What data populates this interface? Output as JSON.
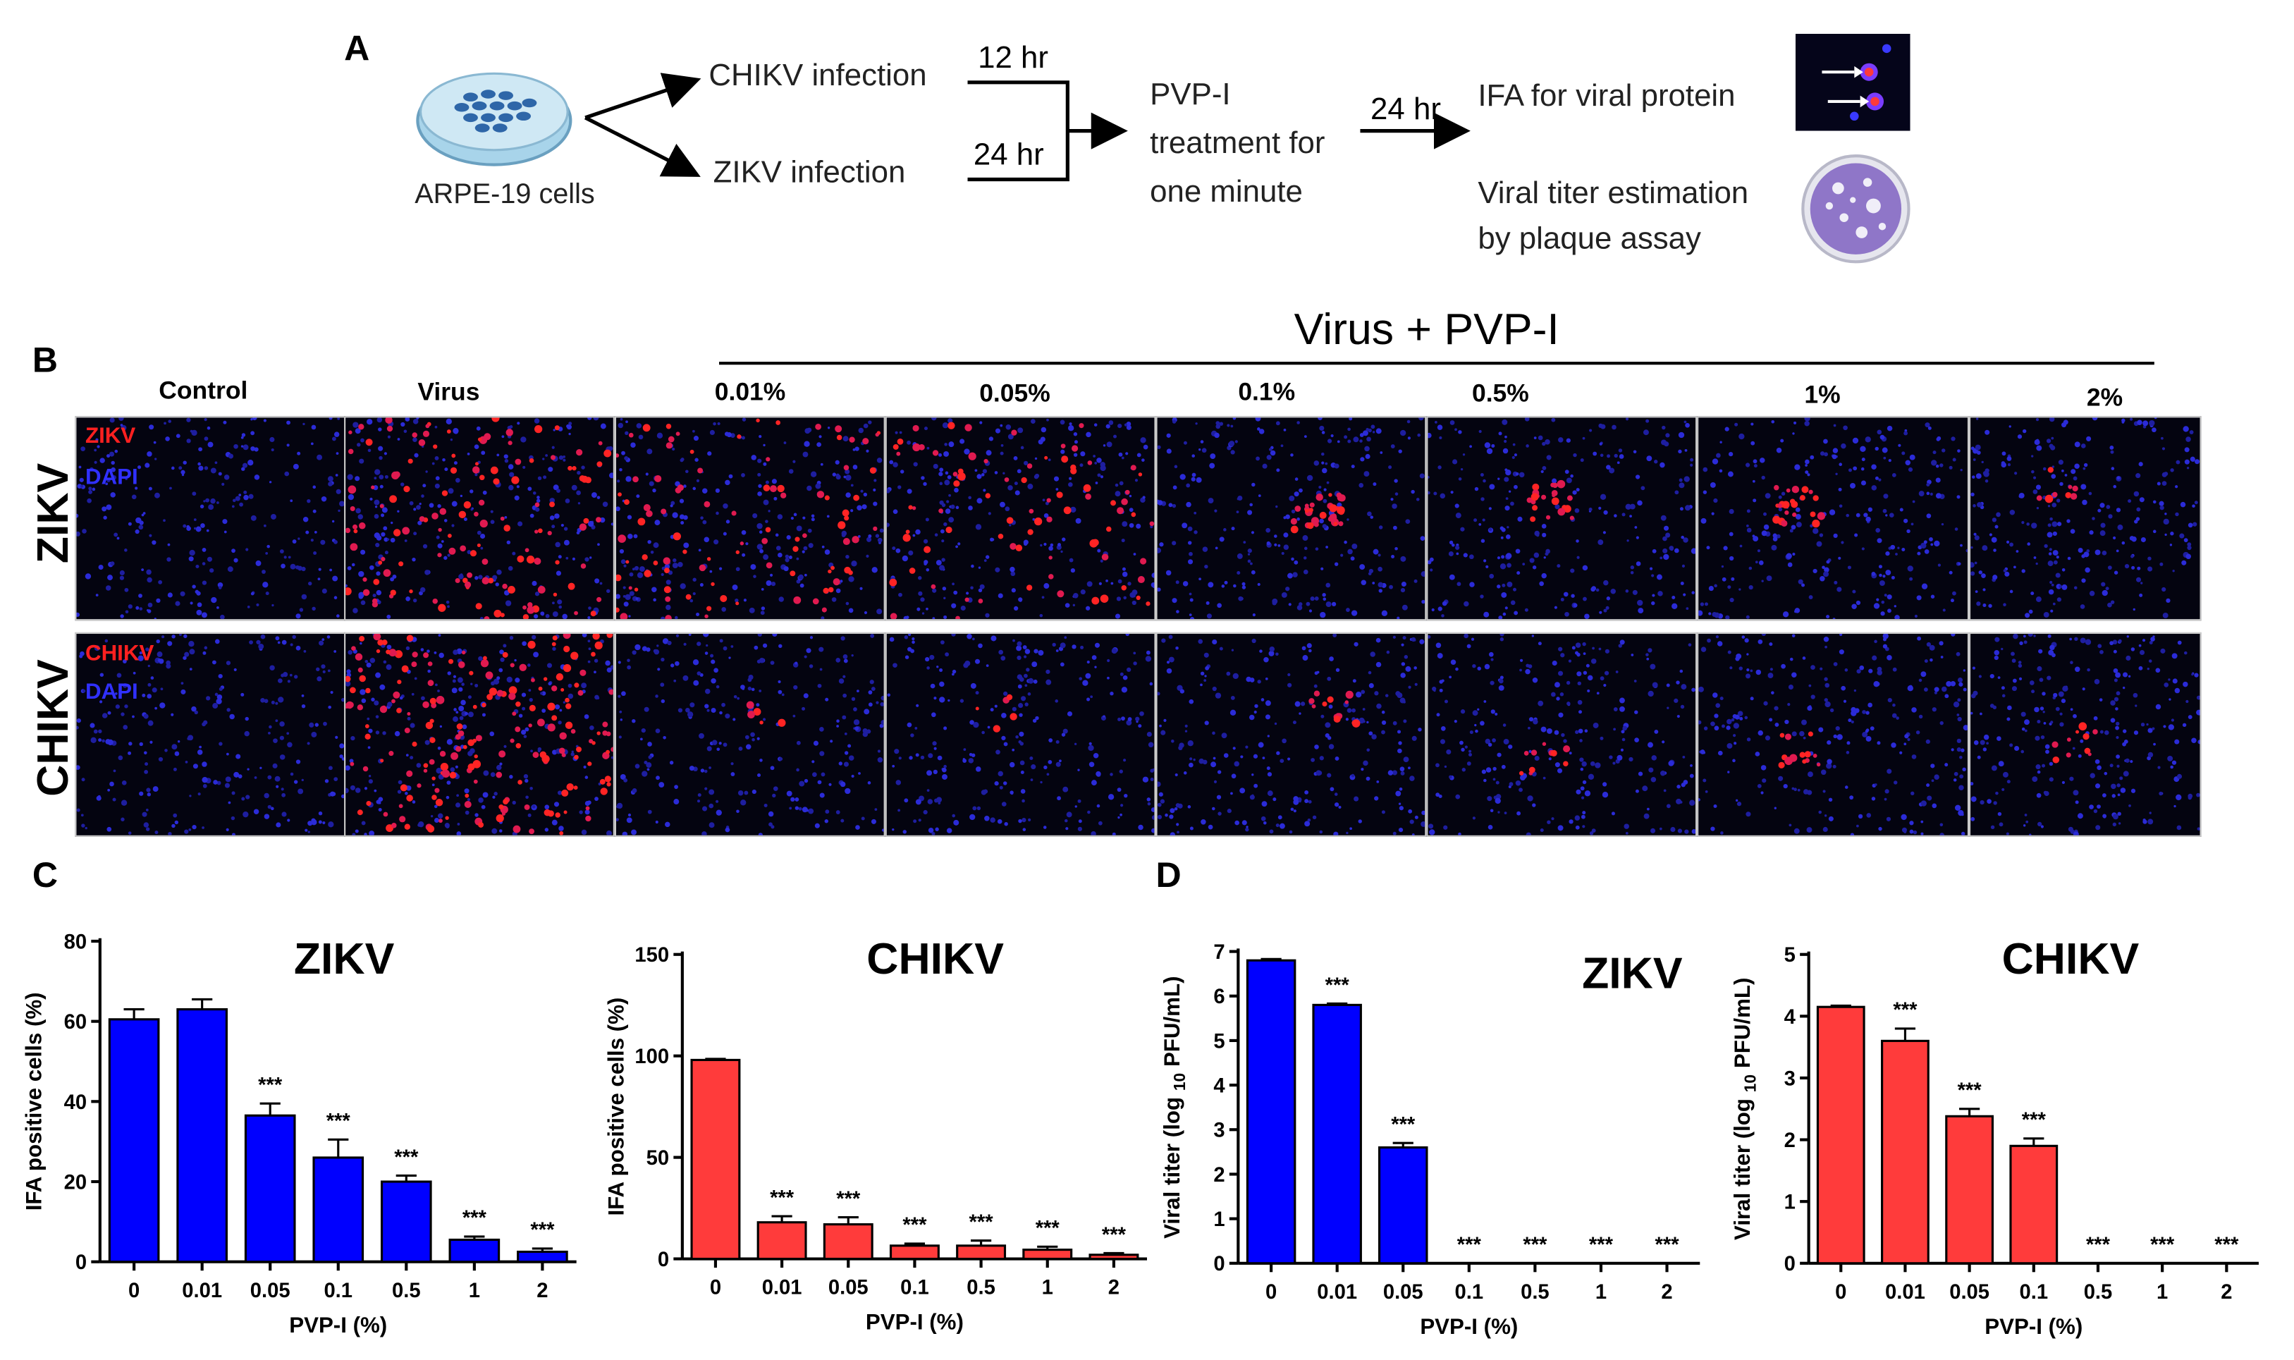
{
  "panel_a": {
    "label": "A",
    "cells_label": "ARPE-19 cells",
    "infection_chikv": "CHIKV infection",
    "infection_zikv": "ZIKV infection",
    "time_chikv": "12 hr",
    "time_zikv": "24 hr",
    "treatment_line1": "PVP-I",
    "treatment_line2": "treatment for",
    "treatment_line3": "one minute",
    "time_after": "24 hr",
    "readout_ifa": "IFA for viral protein",
    "readout_titer_line1": "Viral titer estimation",
    "readout_titer_line2": "by plaque assay"
  },
  "panel_b": {
    "label": "B",
    "group_title": "Virus + PVP-I",
    "columns": [
      "Control",
      "Virus",
      "0.01%",
      "0.05%",
      "0.1%",
      "0.5%",
      "1%",
      "2%"
    ],
    "rows": [
      {
        "label": "ZIKV",
        "stain_virus": "ZIKV",
        "stain_nuclear": "DAPI"
      },
      {
        "label": "CHIKV",
        "stain_virus": "CHIKV",
        "stain_nuclear": "DAPI"
      }
    ],
    "colors": {
      "virus_stain": "#ff1a1a",
      "nuclear_stain": "#2a2aff"
    }
  },
  "panel_c": {
    "label": "C"
  },
  "panel_d": {
    "label": "D"
  },
  "chart_data": [
    {
      "type": "bar",
      "title": "ZIKV",
      "xlabel": "PVP-I (%)",
      "ylabel": "IFA positive cells (%)",
      "categories": [
        "0",
        "0.01",
        "0.05",
        "0.1",
        "0.5",
        "1",
        "2"
      ],
      "values": [
        60.5,
        63,
        36.5,
        26,
        20,
        5.5,
        2.5
      ],
      "errors": [
        2.5,
        2.5,
        3,
        4.5,
        1.5,
        0.8,
        0.8
      ],
      "annotations": [
        "",
        "",
        "***",
        "***",
        "***",
        "***",
        "***"
      ],
      "ylim": [
        0,
        80
      ],
      "yticks": [
        "0",
        "20",
        "40",
        "60",
        "80"
      ],
      "color": "#0000ff"
    },
    {
      "type": "bar",
      "title": "CHIKV",
      "xlabel": "PVP-I (%)",
      "ylabel": "IFA positive cells (%)",
      "categories": [
        "0",
        "0.01",
        "0.05",
        "0.1",
        "0.5",
        "1",
        "2"
      ],
      "values": [
        98,
        18,
        17,
        6.5,
        6.5,
        4.5,
        2
      ],
      "errors": [
        0.5,
        3,
        3.5,
        1,
        2.5,
        1.5,
        0.8
      ],
      "annotations": [
        "",
        "***",
        "***",
        "***",
        "***",
        "***",
        "***"
      ],
      "ylim": [
        0,
        150
      ],
      "yticks": [
        "0",
        "50",
        "100",
        "150"
      ],
      "color": "#ff3b3b"
    },
    {
      "type": "bar",
      "title": "ZIKV",
      "xlabel": "PVP-I (%)",
      "ylabel": "Viral titer (log 10 PFU/mL)",
      "ylabel_parts": [
        "Viral titer (log ",
        "10",
        " PFU/mL)"
      ],
      "categories": [
        "0",
        "0.01",
        "0.05",
        "0.1",
        "0.5",
        "1",
        "2"
      ],
      "values": [
        6.8,
        5.8,
        2.6,
        0,
        0,
        0,
        0
      ],
      "errors": [
        0.03,
        0.03,
        0.1,
        0,
        0,
        0,
        0
      ],
      "annotations": [
        "",
        "***",
        "***",
        "***",
        "***",
        "***",
        "***"
      ],
      "ylim": [
        0,
        7
      ],
      "yticks": [
        "0",
        "1",
        "2",
        "3",
        "4",
        "5",
        "6",
        "7"
      ],
      "color": "#0000ff"
    },
    {
      "type": "bar",
      "title": "CHIKV",
      "xlabel": "PVP-I (%)",
      "ylabel": "Viral titer (log 10 PFU/mL)",
      "ylabel_parts": [
        "Viral titer (log ",
        "10",
        " PFU/mL)"
      ],
      "categories": [
        "0",
        "0.01",
        "0.05",
        "0.1",
        "0.5",
        "1",
        "2"
      ],
      "values": [
        4.15,
        3.6,
        2.38,
        1.9,
        0,
        0,
        0
      ],
      "errors": [
        0.02,
        0.2,
        0.12,
        0.12,
        0,
        0,
        0
      ],
      "annotations": [
        "",
        "***",
        "***",
        "***",
        "***",
        "***",
        "***"
      ],
      "ylim": [
        0,
        5
      ],
      "yticks": [
        "0",
        "1",
        "2",
        "3",
        "4",
        "5"
      ],
      "color": "#ff3b3b"
    }
  ]
}
